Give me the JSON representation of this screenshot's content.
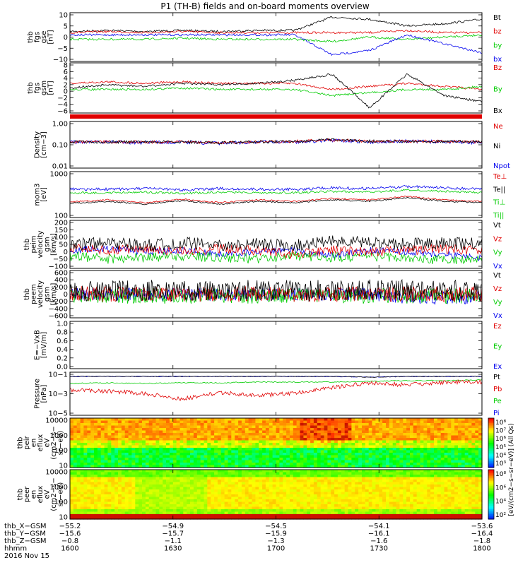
{
  "title": "P1 (TH-B) fields and on-board moments overview",
  "colors": {
    "black": "#000000",
    "red": "#e00000",
    "green": "#00cc00",
    "blue": "#0000ee"
  },
  "chart_data": [
    {
      "type": "line",
      "panel": "fgs",
      "ylabel": [
        "thb",
        "fgs",
        "gse",
        "[nT]"
      ],
      "yticks": [
        "10",
        "5",
        "0",
        "−5",
        "−10"
      ],
      "ylim": [
        -10,
        10
      ],
      "legend": [
        "Bt",
        "bz",
        "by",
        "bx"
      ],
      "series": [
        {
          "name": "Bt",
          "approx_values": [
            2.5,
            3,
            2.5,
            3,
            2.5,
            3,
            3,
            9,
            8,
            5,
            6,
            8
          ]
        },
        {
          "name": "bz",
          "approx_values": [
            2,
            2.5,
            2,
            2.5,
            2,
            2,
            2,
            2,
            2,
            3,
            2,
            2
          ]
        },
        {
          "name": "by",
          "approx_values": [
            -1,
            -1,
            -1,
            -0.5,
            -1,
            -1,
            -1,
            -2,
            0,
            -1,
            0,
            1
          ]
        },
        {
          "name": "bx",
          "approx_values": [
            1,
            1,
            1,
            1,
            1,
            1,
            1,
            -8,
            -6,
            1,
            -3,
            -7
          ]
        }
      ]
    },
    {
      "type": "line",
      "panel": "fgs-gsm",
      "ylabel": [
        "thb",
        "fgs",
        "gsm",
        "[nT]"
      ],
      "yticks": [
        "8",
        "6",
        "4",
        "2",
        "0",
        "−2",
        "−4",
        "−6"
      ],
      "ylim": [
        -7,
        8
      ],
      "legend": [
        "Bz",
        "By",
        "Bx"
      ]
    },
    {
      "type": "line",
      "panel": "density",
      "scale": "log",
      "ylabel": [
        "Density",
        "[cm−3]"
      ],
      "yticks": [
        "1.00",
        "0.10",
        "0.01"
      ],
      "ylim": [
        0.01,
        1
      ],
      "legend": [
        "Ne",
        "Ni",
        "Npot"
      ]
    },
    {
      "type": "line",
      "panel": "temperature",
      "scale": "log",
      "ylabel": [
        "mom3",
        "[eV]"
      ],
      "yticks": [
        "1000",
        "100"
      ],
      "ylim": [
        100,
        10000
      ],
      "legend": [
        "Te⊥",
        "Te||",
        "Ti⊥",
        "Ti||"
      ]
    },
    {
      "type": "line",
      "panel": "ion-velocity",
      "ylabel": [
        "thb",
        "peim",
        "velocity",
        "gsm",
        "[km/s]"
      ],
      "yticks": [
        "200",
        "150",
        "100",
        "50",
        "0",
        "−50",
        "−100"
      ],
      "ylim": [
        -100,
        200
      ],
      "legend": [
        "Vt",
        "Vz",
        "Vy",
        "Vx"
      ]
    },
    {
      "type": "line",
      "panel": "electron-velocity",
      "ylabel": [
        "thb",
        "peem",
        "velocity",
        "gsm",
        "[km/s]"
      ],
      "yticks": [
        "600",
        "400",
        "200",
        "0",
        "−200",
        "−400",
        "−600"
      ],
      "ylim": [
        -600,
        600
      ],
      "legend": [
        "Vt",
        "Vz",
        "Vy",
        "Vx"
      ]
    },
    {
      "type": "line",
      "panel": "efield",
      "ylabel": [
        "E=−VxB",
        "[mV/m]"
      ],
      "yticks": [
        "1.0",
        "0.8",
        "0.6",
        "0.4",
        "0.2",
        "0.0"
      ],
      "ylim": [
        0,
        1
      ],
      "legend": [
        "Ez",
        "Ey",
        "Ex"
      ]
    },
    {
      "type": "line",
      "panel": "pressure",
      "scale": "log",
      "ylabel": [
        "Pressure",
        "[nPa]"
      ],
      "yticks": [
        "10−1",
        "10−3",
        "10−5"
      ],
      "legend": [
        "Pt",
        "Pb",
        "Pe",
        "Pi"
      ]
    },
    {
      "type": "heatmap",
      "panel": "ion-spectrogram",
      "ylabel": [
        "thb",
        "peir",
        "en",
        "eflux",
        "eV",
        "(cm2−s−",
        "sr−eV)"
      ],
      "yticks": [
        "10000",
        "1000",
        "100",
        "10"
      ],
      "colorbar_ticks": [
        "10⁸",
        "10⁷",
        "10⁶",
        "10⁵",
        "10⁴",
        "10³"
      ]
    },
    {
      "type": "heatmap",
      "panel": "electron-spectrogram",
      "ylabel": [
        "thb",
        "peer",
        "en",
        "eflux",
        "eV",
        "(cm2−s−",
        "sr−eV)"
      ],
      "yticks": [
        "10000",
        "1000",
        "100",
        "10"
      ],
      "colorbar_ticks": [
        "10⁸",
        "10⁶",
        "10⁴",
        "10²"
      ]
    }
  ],
  "colorbar_label": "[eV/(cm2−s−sr−eV)] (All Qs)",
  "footer": {
    "labels": [
      "thb_X−GSM",
      "thb_Y−GSM",
      "thb_Z−GSM",
      "hhmm",
      "2016 Nov 15"
    ],
    "columns": [
      [
        "−55.2",
        "−15.6",
        "−0.8",
        "1600"
      ],
      [
        "−54.9",
        "−15.7",
        "−1.1",
        "1630"
      ],
      [
        "−54.5",
        "−15.9",
        "−1.3",
        "1700"
      ],
      [
        "−54.1",
        "−16.1",
        "−1.6",
        "1730"
      ],
      [
        "−53.6",
        "−16.4",
        "−1.8",
        "1800"
      ]
    ]
  }
}
